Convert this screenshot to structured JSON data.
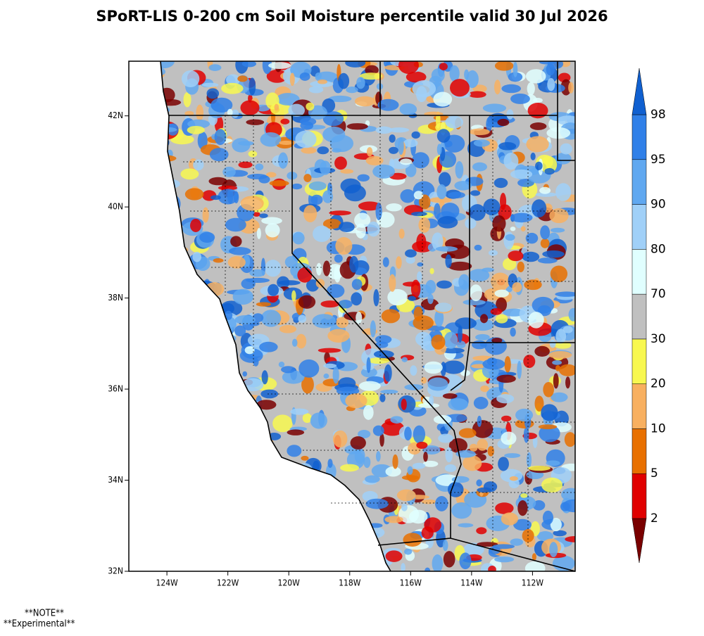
{
  "map": {
    "title": "SPoRT-LIS 0-200 cm Soil Moisture percentile valid 30 Jul 2026",
    "xlim": [
      -125.25,
      -110.6
    ],
    "ylim": [
      32,
      43.2
    ],
    "xticks": [
      {
        "value": -124,
        "label": "124W"
      },
      {
        "value": -122,
        "label": "122W"
      },
      {
        "value": -120,
        "label": "120W"
      },
      {
        "value": -118,
        "label": "118W"
      },
      {
        "value": -116,
        "label": "116W"
      },
      {
        "value": -114,
        "label": "114W"
      },
      {
        "value": -112,
        "label": "112W"
      }
    ],
    "yticks": [
      {
        "value": 32,
        "label": "32N"
      },
      {
        "value": 34,
        "label": "34N"
      },
      {
        "value": 36,
        "label": "36N"
      },
      {
        "value": 38,
        "label": "38N"
      },
      {
        "value": 40,
        "label": "40N"
      },
      {
        "value": 42,
        "label": "42N"
      }
    ],
    "colorbar": {
      "levels": [
        2,
        5,
        10,
        20,
        30,
        70,
        80,
        90,
        95,
        98
      ],
      "colors": [
        "#7a0000",
        "#e00000",
        "#e87000",
        "#f8b060",
        "#f8f850",
        "#c0c0c0",
        "#e0ffff",
        "#a0d0f8",
        "#60a8f0",
        "#3080e8",
        "#1060d0"
      ]
    },
    "notes": [
      "**NOTE**",
      "**Experimental**"
    ]
  }
}
